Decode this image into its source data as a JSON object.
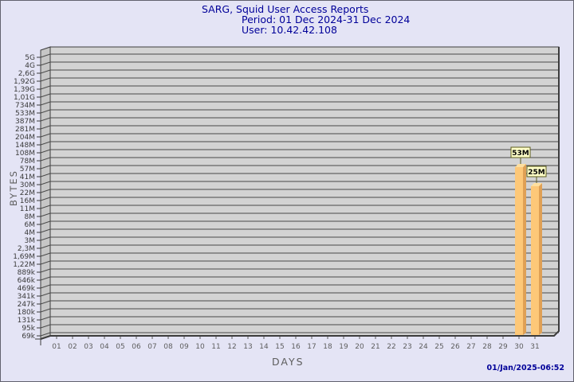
{
  "header": {
    "title": "SARG, Squid User Access Reports",
    "period": "Period: 01 Dec 2024-31 Dec 2024",
    "user": "User: 10.42.42.108"
  },
  "footer": {
    "timestamp": "01/Jan/2025-06:52"
  },
  "chart_data": {
    "type": "bar",
    "title": "SARG, Squid User Access Reports",
    "subtitle_period": "Period: 01 Dec 2024-31 Dec 2024",
    "subtitle_user": "User: 10.42.42.108",
    "xlabel": "DAYS",
    "ylabel": "BYTES",
    "y_scale": "log",
    "grid": "horizontal",
    "legend": "none",
    "y_axis_top_value": 5000000000,
    "y_axis_bottom_value": 69000,
    "y_tick_labels": [
      "5G",
      "4G",
      "2,6G",
      "1,92G",
      "1,39G",
      "1,01G",
      "734M",
      "533M",
      "387M",
      "281M",
      "204M",
      "148M",
      "108M",
      "78M",
      "57M",
      "41M",
      "30M",
      "22M",
      "16M",
      "11M",
      "8M",
      "6M",
      "4M",
      "3M",
      "2,3M",
      "1,69M",
      "1,22M",
      "889k",
      "646k",
      "469k",
      "341k",
      "247k",
      "180k",
      "131k",
      "95k",
      "69k"
    ],
    "x_tick_labels": [
      "01",
      "02",
      "03",
      "04",
      "05",
      "06",
      "07",
      "08",
      "09",
      "10",
      "11",
      "12",
      "13",
      "14",
      "15",
      "16",
      "17",
      "18",
      "19",
      "20",
      "21",
      "22",
      "23",
      "24",
      "25",
      "26",
      "27",
      "28",
      "29",
      "30",
      "31"
    ],
    "bars": [
      {
        "day": "30",
        "value_label": "53M",
        "value_bytes": 53000000
      },
      {
        "day": "31",
        "value_label": "25M",
        "value_bytes": 25000000
      }
    ],
    "colors": {
      "page_bg": "#e4e4f5",
      "page_border": "#62626e",
      "title_color": "#000099",
      "timestamp_color": "#000099",
      "plot_bg": "#d3d3d3",
      "wall_bg": "#c6c6c6",
      "frame": "#3c3c3c",
      "grid": "#4a4a4a",
      "y_tick_color": "#3a3a3a",
      "x_tick_color": "#5e5e5e",
      "axis_title_color": "#5d5d5d",
      "bar_front": "#fdc878",
      "bar_side": "#dfa055",
      "bar_top": "#fedf9f",
      "value_box_bg": "#ffffc8",
      "value_box_border": "#5c5c1e"
    }
  }
}
